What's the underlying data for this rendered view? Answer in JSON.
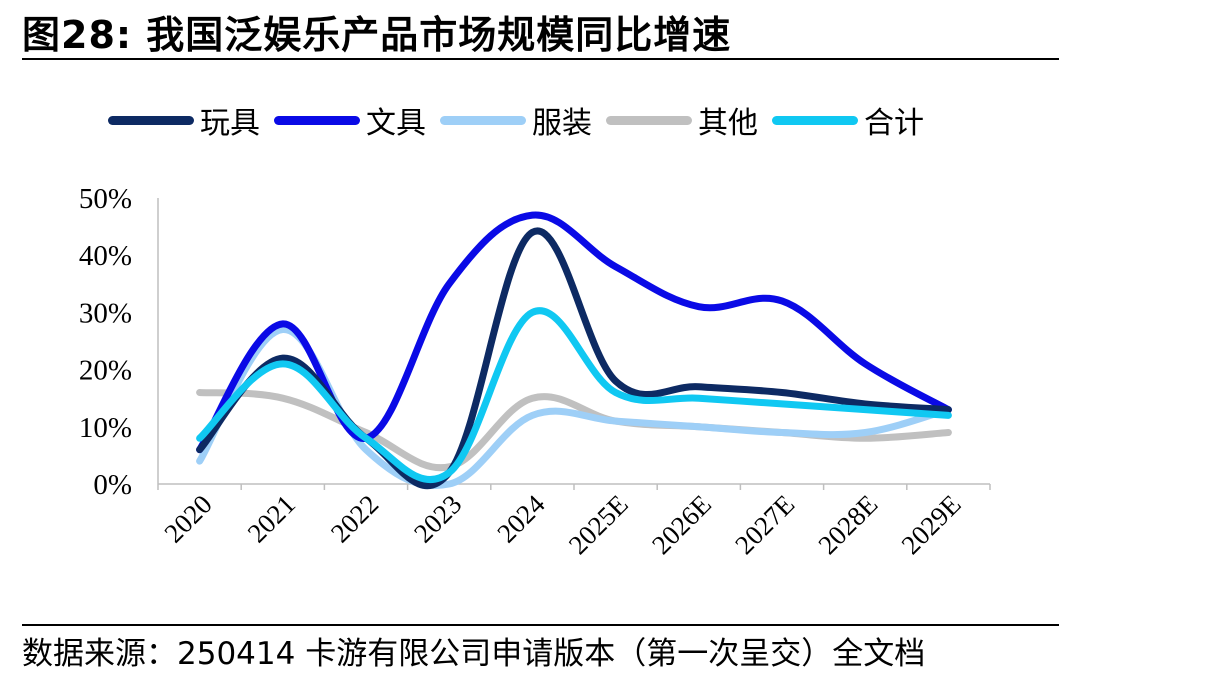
{
  "figure": {
    "title": "图28:  我国泛娱乐产品市场规模同比增速",
    "source": "数据来源：250414 卡游有限公司申请版本（第一次呈交）全文档"
  },
  "chart_data": {
    "type": "line",
    "smooth": true,
    "categories": [
      "2020",
      "2021",
      "2022",
      "2023",
      "2024",
      "2025E",
      "2026E",
      "2027E",
      "2028E",
      "2029E"
    ],
    "y_ticks": [
      "0%",
      "10%",
      "20%",
      "30%",
      "40%",
      "50%"
    ],
    "ylim": [
      0,
      50
    ],
    "grid": false,
    "legend_position": "top",
    "series": [
      {
        "name": "玩具",
        "color": "#0d2a63",
        "values": [
          6,
          22,
          8,
          2,
          44,
          18,
          17,
          16,
          14,
          13
        ]
      },
      {
        "name": "文具",
        "color": "#0a0ae6",
        "values": [
          6,
          28,
          8,
          35,
          47,
          38,
          31,
          32,
          21,
          13
        ]
      },
      {
        "name": "服装",
        "color": "#9ecff7",
        "values": [
          4,
          27,
          6,
          0,
          12,
          11,
          10,
          9,
          9,
          13
        ]
      },
      {
        "name": "其他",
        "color": "#c0c0c0",
        "values": [
          16,
          15,
          9,
          3,
          15,
          11,
          10,
          9,
          8,
          9
        ]
      },
      {
        "name": "合计",
        "color": "#10c8f2",
        "values": [
          8,
          21,
          8,
          2,
          30,
          16,
          15,
          14,
          13,
          12
        ]
      }
    ]
  }
}
